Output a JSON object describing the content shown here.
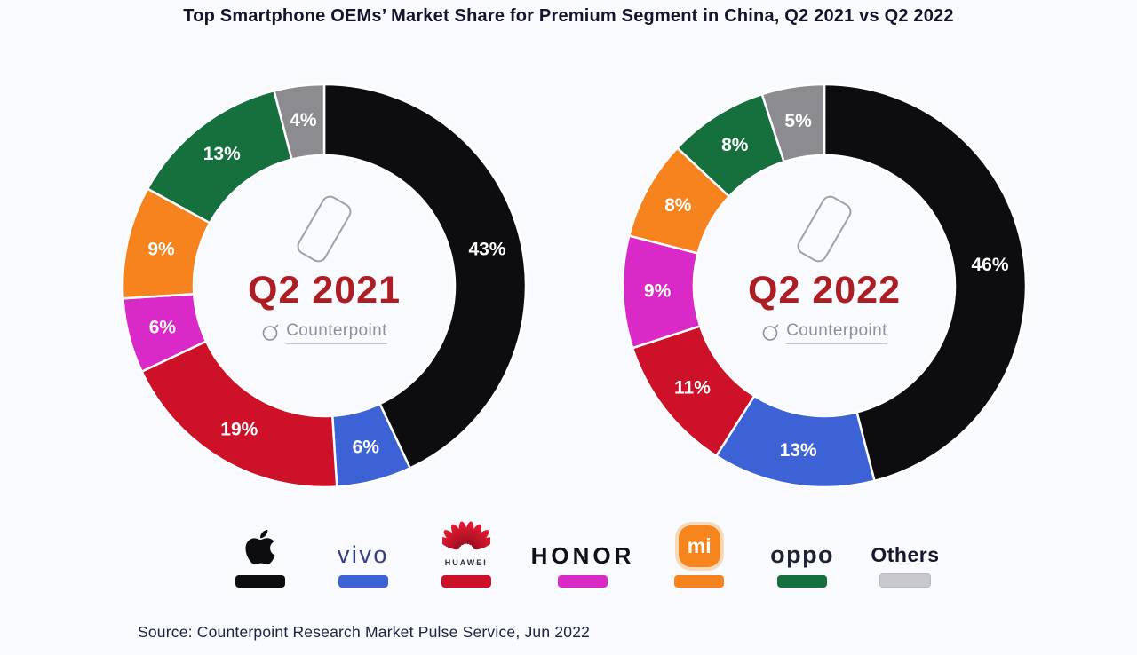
{
  "page": {
    "title": "Top Smartphone OEMs’ Market Share for Premium Segment in China, Q2 2021 vs Q2 2022",
    "source": "Source: Counterpoint Research Market Pulse Service, Jun 2022"
  },
  "chart_data": [
    {
      "type": "pie",
      "subtype": "donut",
      "title": "Q2 2021",
      "center_label": "Q2 2021",
      "watermark": "Counterpoint",
      "unit": "%",
      "categories": [
        "Apple",
        "vivo",
        "Huawei",
        "Honor",
        "Xiaomi",
        "OPPO",
        "Others"
      ],
      "values": [
        43,
        6,
        19,
        6,
        9,
        13,
        4
      ],
      "colors": [
        "#0d0d10",
        "#3c62d6",
        "#cc1128",
        "#d92ac8",
        "#f6831e",
        "#15703e",
        "#8c8c90"
      ],
      "label_color": "#ffffff",
      "start_angle_deg": 0,
      "direction": "clockwise",
      "legend_position": "bottom"
    },
    {
      "type": "pie",
      "subtype": "donut",
      "title": "Q2 2022",
      "center_label": "Q2 2022",
      "watermark": "Counterpoint",
      "unit": "%",
      "categories": [
        "Apple",
        "vivo",
        "Huawei",
        "Honor",
        "Xiaomi",
        "OPPO",
        "Others"
      ],
      "values": [
        46,
        13,
        11,
        9,
        8,
        8,
        5
      ],
      "colors": [
        "#0d0d10",
        "#3c62d6",
        "#cc1128",
        "#d92ac8",
        "#f6831e",
        "#15703e",
        "#8c8c90"
      ],
      "label_color": "#ffffff",
      "start_angle_deg": 0,
      "direction": "clockwise",
      "legend_position": "bottom"
    }
  ],
  "legend": {
    "items": [
      {
        "label": "Apple",
        "bar_color": "#0d0d10"
      },
      {
        "label": "vivo",
        "bar_color": "#3c62d6"
      },
      {
        "label": "HUAWEI",
        "bar_color": "#cc1128"
      },
      {
        "label": "HONOR",
        "bar_color": "#d92ac8"
      },
      {
        "label": "Mi",
        "logo_text": "mi",
        "bar_color": "#f6831e"
      },
      {
        "label": "oppo",
        "bar_color": "#15703e"
      },
      {
        "label": "Others",
        "bar_color": "#c9c9cd"
      }
    ]
  }
}
